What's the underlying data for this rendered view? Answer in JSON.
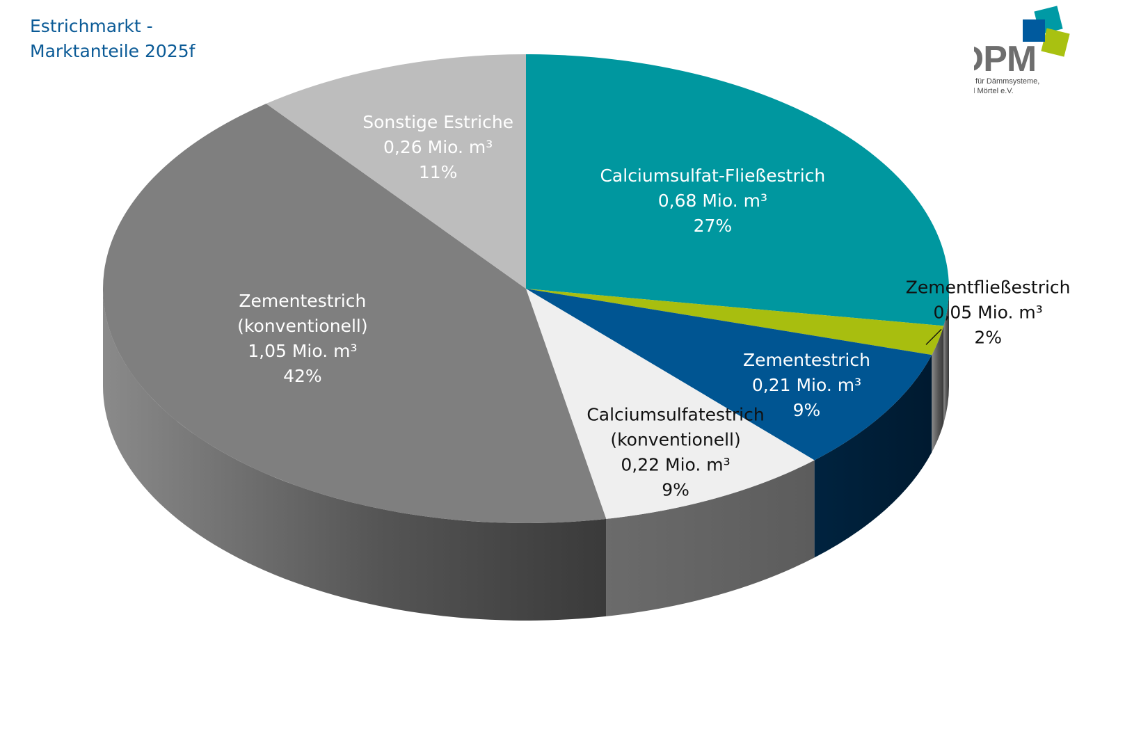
{
  "title": {
    "line1": "Estrichmarkt -",
    "line2": "Marktanteile 2025f"
  },
  "logo": {
    "brand": "VDPM",
    "subtitle_line1": "Verband für Dämmsysteme,",
    "subtitle_line2": "Putz und Mörtel e.V.",
    "colors": [
      "#009aa5",
      "#005a9e",
      "#a9c111"
    ]
  },
  "chart_data": {
    "type": "pie",
    "style": "3d",
    "title": "Estrichmarkt - Marktanteile 2025f",
    "unit": "Mio. m³",
    "slices": [
      {
        "label": "Calciumsulfat-Fließestrich",
        "value": 0.68,
        "value_text": "0,68 Mio. m³",
        "percent": 27,
        "percent_text": "27%",
        "color": "#00979f",
        "label_color": "#ffffff"
      },
      {
        "label": "Zementfließestrich",
        "value": 0.05,
        "value_text": "0,05 Mio. m³",
        "percent": 2,
        "percent_text": "2%",
        "color": "#a8be0f",
        "label_color": "#111111"
      },
      {
        "label": "Zementestrich",
        "value": 0.21,
        "value_text": "0,21 Mio. m³",
        "percent": 9,
        "percent_text": "9%",
        "color": "#005592",
        "label_color": "#ffffff"
      },
      {
        "label": "Calciumsulfatestrich (konventionell)",
        "label_lines": [
          "Calciumsulfatestrich",
          "(konventionell)"
        ],
        "value": 0.22,
        "value_text": "0,22 Mio. m³",
        "percent": 9,
        "percent_text": "9%",
        "color": "#efefef",
        "label_color": "#111111"
      },
      {
        "label": "Zementestrich (konventionell)",
        "label_lines": [
          "Zementestrich",
          "(konventionell)"
        ],
        "value": 1.05,
        "value_text": "1,05 Mio. m³",
        "percent": 42,
        "percent_text": "42%",
        "color": "#7f7f7f",
        "label_color": "#ffffff"
      },
      {
        "label": "Sonstige Estriche",
        "value": 0.26,
        "value_text": "0,26 Mio. m³",
        "percent": 11,
        "percent_text": "11%",
        "color": "#bdbdbd",
        "label_color": "#ffffff"
      }
    ]
  }
}
